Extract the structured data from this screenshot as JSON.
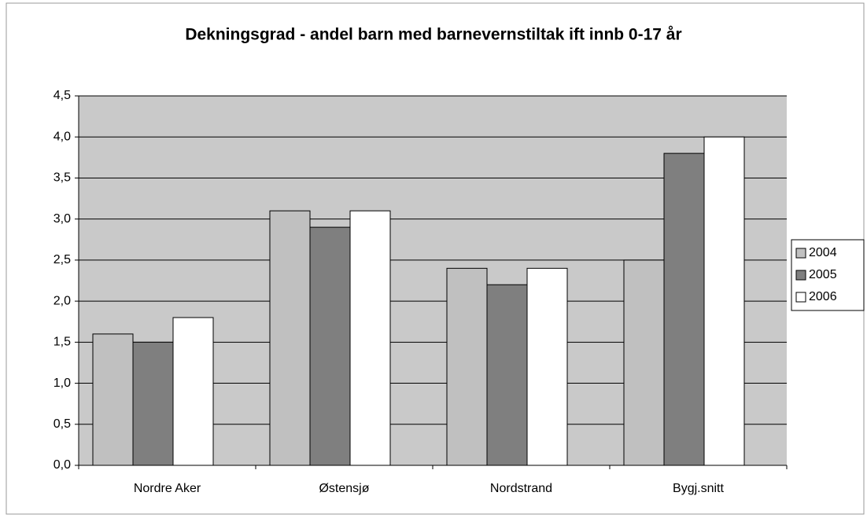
{
  "chart_data": {
    "type": "bar",
    "title": "Dekningsgrad - andel barn med barnevernstiltak ift innb 0-17 år",
    "categories": [
      "Nordre Aker",
      "Østensjø",
      "Nordstrand",
      "Bygj.snitt"
    ],
    "series": [
      {
        "name": "2004",
        "color": "#c0c0c0",
        "values": [
          1.6,
          3.1,
          2.4,
          2.5
        ]
      },
      {
        "name": "2005",
        "color": "#7f7f7f",
        "values": [
          1.5,
          2.9,
          2.2,
          3.8
        ]
      },
      {
        "name": "2006",
        "color": "#ffffff",
        "values": [
          1.8,
          3.1,
          2.4,
          4.0
        ]
      }
    ],
    "ylim": [
      0,
      4.5
    ],
    "yticks": [
      {
        "value": 0,
        "label": "0,0"
      },
      {
        "value": 0.5,
        "label": "0,5"
      },
      {
        "value": 1,
        "label": "1,0"
      },
      {
        "value": 1.5,
        "label": "1,5"
      },
      {
        "value": 2,
        "label": "2,0"
      },
      {
        "value": 2.5,
        "label": "2,5"
      },
      {
        "value": 3,
        "label": "3,0"
      },
      {
        "value": 3.5,
        "label": "3,5"
      },
      {
        "value": 4,
        "label": "4,0"
      },
      {
        "value": 4.5,
        "label": "4,5"
      }
    ],
    "grid": true,
    "legend": "right"
  }
}
